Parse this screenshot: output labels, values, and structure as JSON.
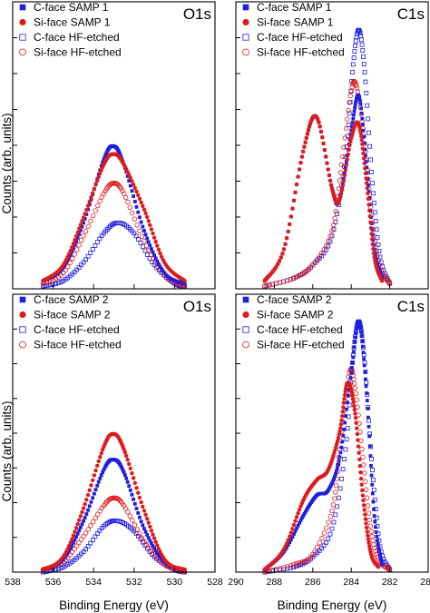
{
  "ylabel": "Counts (arb. units)",
  "xlabel": "Binding Energy (eV)",
  "colors": {
    "blue": "#1f1fe0",
    "red": "#e01a1a",
    "blue_light": "#3a3aee",
    "red_light": "#ee5555"
  },
  "chart_data": [
    {
      "type": "scatter",
      "title": "O1s",
      "xlim": [
        538,
        528
      ],
      "xlabel": "",
      "ylabel": "Counts (arb. units)",
      "xticks": [
        538,
        536,
        534,
        532,
        530,
        528
      ],
      "show_xticklabels": false,
      "legend_position": "top-left",
      "series": [
        {
          "name": "C-face SAMP 1",
          "marker": "filled-square",
          "color": "#1f1fe0",
          "x": [
            536.5,
            535.5,
            534.5,
            533.5,
            533.0,
            532.5,
            531.5,
            530.5,
            529.5
          ],
          "y": [
            0.03,
            0.08,
            0.25,
            0.49,
            0.54,
            0.47,
            0.22,
            0.06,
            0.02
          ]
        },
        {
          "name": "Si-face SAMP 1",
          "marker": "filled-circle",
          "color": "#e01a1a",
          "x": [
            536.5,
            535.5,
            534.5,
            533.5,
            533.0,
            532.5,
            531.5,
            530.5,
            529.5
          ],
          "y": [
            0.03,
            0.09,
            0.27,
            0.47,
            0.51,
            0.47,
            0.3,
            0.1,
            0.03
          ]
        },
        {
          "name": "C-face HF-etched",
          "marker": "open-square",
          "color": "#1f1fe0",
          "x": [
            536.5,
            535.5,
            534.5,
            533.5,
            532.8,
            532.0,
            531.0,
            530.0,
            529.5
          ],
          "y": [
            0.01,
            0.03,
            0.1,
            0.21,
            0.25,
            0.21,
            0.09,
            0.02,
            0.01
          ]
        },
        {
          "name": "Si-face HF-etched",
          "marker": "open-circle",
          "color": "#e01a1a",
          "x": [
            536.5,
            535.5,
            534.5,
            533.5,
            533.0,
            532.5,
            531.5,
            530.5,
            529.5
          ],
          "y": [
            0.02,
            0.06,
            0.2,
            0.36,
            0.4,
            0.36,
            0.18,
            0.05,
            0.01
          ]
        }
      ]
    },
    {
      "type": "scatter",
      "title": "C1s",
      "xlim": [
        290,
        280
      ],
      "xlabel": "",
      "ylabel": "",
      "xticks": [
        290,
        288,
        286,
        284,
        282,
        280
      ],
      "show_xticklabels": false,
      "legend_position": "top-left",
      "series": [
        {
          "name": "C-face SAMP 1",
          "marker": "filled-square",
          "color": "#1f1fe0",
          "x": [
            288.5,
            287.5,
            286.5,
            285.8,
            285.0,
            284.6,
            284.0,
            283.6,
            283.2,
            282.8,
            282.4
          ],
          "y": [
            0.03,
            0.15,
            0.52,
            0.65,
            0.38,
            0.34,
            0.6,
            0.73,
            0.46,
            0.15,
            0.04
          ]
        },
        {
          "name": "Si-face SAMP 1",
          "marker": "filled-circle",
          "color": "#e01a1a",
          "x": [
            288.5,
            287.5,
            286.5,
            285.8,
            285.0,
            284.6,
            284.0,
            283.6,
            283.2,
            282.8,
            282.4
          ],
          "y": [
            0.03,
            0.15,
            0.52,
            0.65,
            0.38,
            0.34,
            0.57,
            0.62,
            0.4,
            0.12,
            0.03
          ]
        },
        {
          "name": "C-face HF-etched",
          "marker": "open-square",
          "color": "#1f1fe0",
          "x": [
            288.5,
            287.0,
            286.0,
            285.0,
            284.3,
            283.9,
            283.6,
            283.3,
            282.9,
            282.5,
            282.0
          ],
          "y": [
            0.01,
            0.04,
            0.09,
            0.2,
            0.5,
            0.85,
            0.98,
            0.82,
            0.4,
            0.12,
            0.02
          ]
        },
        {
          "name": "Si-face HF-etched",
          "marker": "open-circle",
          "color": "#e01a1a",
          "x": [
            288.5,
            287.0,
            286.0,
            285.0,
            284.5,
            284.0,
            283.7,
            283.3,
            282.9,
            282.5,
            282.0
          ],
          "y": [
            0.01,
            0.04,
            0.09,
            0.22,
            0.47,
            0.75,
            0.76,
            0.55,
            0.25,
            0.08,
            0.02
          ]
        }
      ]
    },
    {
      "type": "scatter",
      "title": "O1s",
      "xlim": [
        538,
        528
      ],
      "xlabel": "Binding Energy (eV)",
      "ylabel": "Counts (arb. units)",
      "xticks": [
        538,
        536,
        534,
        532,
        530,
        528
      ],
      "show_xticklabels": true,
      "legend_position": "top-left",
      "series": [
        {
          "name": "C-face SAMP 2",
          "marker": "filled-square",
          "color": "#1f1fe0",
          "x": [
            536.5,
            535.5,
            534.5,
            533.5,
            533.0,
            532.5,
            531.5,
            530.5,
            529.5
          ],
          "y": [
            0.01,
            0.05,
            0.2,
            0.4,
            0.44,
            0.39,
            0.17,
            0.04,
            0.01
          ]
        },
        {
          "name": "Si-face SAMP 2",
          "marker": "filled-circle",
          "color": "#e01a1a",
          "x": [
            536.5,
            535.5,
            534.5,
            533.5,
            533.0,
            532.5,
            531.5,
            530.5,
            529.5
          ],
          "y": [
            0.01,
            0.06,
            0.25,
            0.49,
            0.54,
            0.48,
            0.24,
            0.05,
            0.01
          ]
        },
        {
          "name": "C-face HF-etched",
          "marker": "open-square",
          "color": "#1f1fe0",
          "x": [
            536.5,
            535.5,
            534.5,
            533.5,
            532.8,
            532.0,
            531.0,
            530.0,
            529.5
          ],
          "y": [
            0.0,
            0.02,
            0.08,
            0.18,
            0.2,
            0.16,
            0.06,
            0.01,
            0.0
          ]
        },
        {
          "name": "Si-face HF-etched",
          "marker": "open-circle",
          "color": "#e01a1a",
          "x": [
            536.5,
            535.5,
            534.5,
            533.5,
            533.0,
            532.5,
            531.5,
            530.5,
            529.5
          ],
          "y": [
            0.01,
            0.04,
            0.14,
            0.26,
            0.29,
            0.26,
            0.12,
            0.03,
            0.0
          ]
        }
      ]
    },
    {
      "type": "scatter",
      "title": "C1s",
      "xlim": [
        290,
        280
      ],
      "xlabel": "Binding Energy (eV)",
      "ylabel": "",
      "xticks": [
        290,
        288,
        286,
        284,
        282,
        280
      ],
      "show_xticklabels": true,
      "legend_position": "top-left",
      "series": [
        {
          "name": "C-face SAMP 2",
          "marker": "filled-square",
          "color": "#1f1fe0",
          "x": [
            288.5,
            287.5,
            286.5,
            285.8,
            285.2,
            284.6,
            284.0,
            283.6,
            283.2,
            282.8,
            282.4
          ],
          "y": [
            0.01,
            0.08,
            0.22,
            0.3,
            0.32,
            0.45,
            0.78,
            0.98,
            0.7,
            0.22,
            0.03
          ]
        },
        {
          "name": "Si-face SAMP 2",
          "marker": "filled-circle",
          "color": "#e01a1a",
          "x": [
            288.5,
            287.5,
            286.5,
            285.8,
            285.2,
            284.6,
            284.2,
            283.8,
            283.4,
            283.0,
            282.6
          ],
          "y": [
            0.01,
            0.09,
            0.28,
            0.36,
            0.4,
            0.55,
            0.74,
            0.62,
            0.3,
            0.08,
            0.02
          ]
        },
        {
          "name": "C-face HF-etched",
          "marker": "open-square",
          "color": "#1f1fe0",
          "x": [
            288.5,
            287.0,
            286.0,
            285.0,
            284.3,
            283.9,
            283.6,
            283.3,
            282.9,
            282.5,
            282.0
          ],
          "y": [
            0.0,
            0.02,
            0.06,
            0.17,
            0.48,
            0.85,
            0.98,
            0.82,
            0.4,
            0.1,
            0.01
          ]
        },
        {
          "name": "Si-face HF-etched",
          "marker": "open-circle",
          "color": "#e01a1a",
          "x": [
            288.5,
            287.0,
            286.0,
            285.0,
            284.6,
            284.1,
            283.8,
            283.4,
            283.0,
            282.6,
            282.0
          ],
          "y": [
            0.0,
            0.03,
            0.07,
            0.24,
            0.48,
            0.78,
            0.72,
            0.45,
            0.18,
            0.05,
            0.01
          ]
        }
      ]
    }
  ]
}
